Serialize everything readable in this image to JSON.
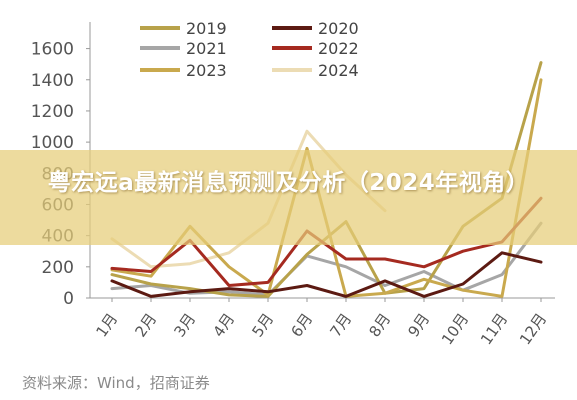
{
  "chart_data": {
    "type": "line",
    "categories": [
      "1月",
      "2月",
      "3月",
      "4月",
      "5月",
      "6月",
      "7月",
      "8月",
      "9月",
      "10月",
      "11月",
      "12月"
    ],
    "ylim": [
      0,
      1700
    ],
    "yticks": [
      0,
      200,
      400,
      600,
      800,
      1000,
      1200,
      1400,
      1600
    ],
    "grid": false,
    "legend_position": "top",
    "series": [
      {
        "name": "2019",
        "color": "#b8a24a",
        "values": [
          150,
          90,
          60,
          20,
          10,
          280,
          490,
          30,
          60,
          460,
          640,
          1510
        ]
      },
      {
        "name": "2020",
        "color": "#5c1a12",
        "values": [
          110,
          10,
          40,
          60,
          40,
          80,
          10,
          110,
          10,
          90,
          290,
          230
        ]
      },
      {
        "name": "2021",
        "color": "#a6a6a6",
        "values": [
          60,
          80,
          30,
          40,
          20,
          270,
          200,
          80,
          170,
          50,
          150,
          480
        ]
      },
      {
        "name": "2022",
        "color": "#a52a20",
        "values": [
          190,
          170,
          370,
          80,
          100,
          430,
          250,
          250,
          200,
          300,
          360,
          640
        ]
      },
      {
        "name": "2023",
        "color": "#c9a94e",
        "values": [
          180,
          140,
          460,
          200,
          20,
          960,
          10,
          30,
          120,
          50,
          10,
          1400
        ]
      },
      {
        "name": "2024",
        "color": "#ecdcb4",
        "values": [
          380,
          200,
          220,
          290,
          480,
          1070,
          790,
          560,
          null,
          null,
          null,
          null
        ]
      }
    ]
  },
  "overlay": {
    "title": "粤宏远a最新消息预测及分析（2024年视角）"
  },
  "source": "资料来源：Wind，招商证券"
}
